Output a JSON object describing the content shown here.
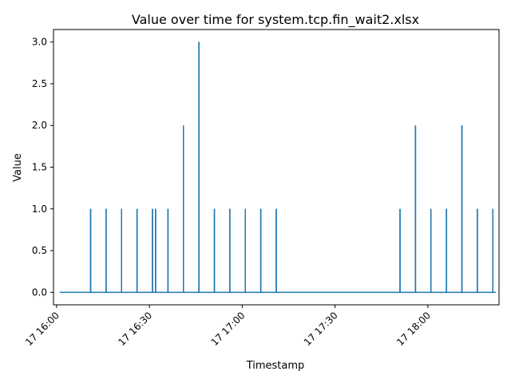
{
  "chart_data": {
    "type": "line",
    "title": "Value over time for system.tcp.fin_wait2.xlsx",
    "xlabel": "Timestamp",
    "ylabel": "Value",
    "line_color": "#1f77b4",
    "grid": false,
    "legend": "none",
    "xlim": [
      "17 15:59",
      "18:23"
    ],
    "ylim": [
      -0.15,
      3.15
    ],
    "x_ticks": [
      "17 16:00",
      "17 16:30",
      "17 17:00",
      "17 17:30",
      "17 18:00"
    ],
    "y_ticks": [
      "0.0",
      "0.5",
      "1.0",
      "1.5",
      "2.0",
      "2.5",
      "3.0"
    ],
    "series_start": "17 16:01",
    "series_end": "17 18:22",
    "spikes": [
      {
        "time": "17 16:11",
        "value": 1
      },
      {
        "time": "17 16:16",
        "value": 1
      },
      {
        "time": "17 16:21",
        "value": 1
      },
      {
        "time": "17 16:26",
        "value": 1
      },
      {
        "time": "17 16:31",
        "value": 1
      },
      {
        "time": "17 16:32",
        "value": 1
      },
      {
        "time": "17 16:36",
        "value": 1
      },
      {
        "time": "17 16:41",
        "value": 2
      },
      {
        "time": "17 16:46",
        "value": 3
      },
      {
        "time": "17 16:51",
        "value": 1
      },
      {
        "time": "17 16:56",
        "value": 1
      },
      {
        "time": "17 17:01",
        "value": 1
      },
      {
        "time": "17 17:06",
        "value": 1
      },
      {
        "time": "17 17:11",
        "value": 1
      },
      {
        "time": "17 17:51",
        "value": 1
      },
      {
        "time": "17 17:56",
        "value": 2
      },
      {
        "time": "17 18:01",
        "value": 1
      },
      {
        "time": "17 18:06",
        "value": 1
      },
      {
        "time": "17 18:11",
        "value": 2
      },
      {
        "time": "17 18:16",
        "value": 1
      },
      {
        "time": "17 18:21",
        "value": 1
      }
    ]
  }
}
